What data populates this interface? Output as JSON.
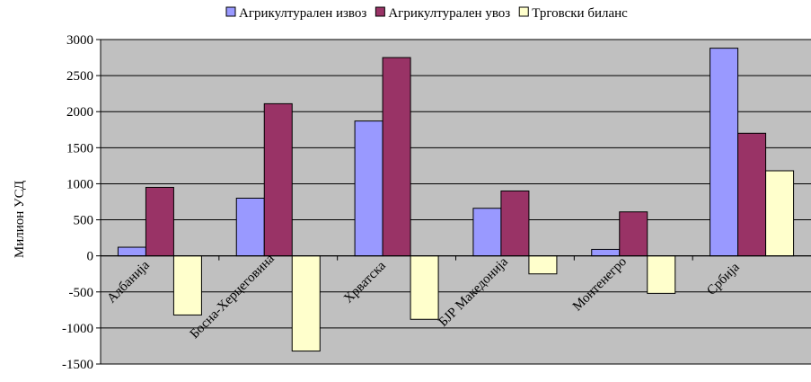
{
  "chart_data": {
    "type": "bar",
    "title": "",
    "xlabel": "",
    "ylabel": "Милион УСД",
    "ylim": [
      -1500,
      3000
    ],
    "yticks": [
      3000,
      2500,
      2000,
      1500,
      1000,
      500,
      0,
      -500,
      -1000,
      -1500
    ],
    "grid": true,
    "legend_position": "top",
    "categories": [
      "Албанија",
      "Босна-Херцеговина",
      "Хрватска",
      "БЈР Македонија",
      "Монтенегро",
      "Србија"
    ],
    "series": [
      {
        "name": "Агрикултурален извоз",
        "color": "#9999ff",
        "values": [
          120,
          800,
          1870,
          660,
          90,
          2880
        ]
      },
      {
        "name": "Агрикултурален увоз",
        "color": "#993366",
        "values": [
          950,
          2110,
          2750,
          900,
          610,
          1700
        ]
      },
      {
        "name": "Трговски биланс",
        "color": "#ffffcc",
        "values": [
          -820,
          -1320,
          -880,
          -250,
          -520,
          1180
        ]
      }
    ],
    "plot_background": "#c0c0c0"
  }
}
